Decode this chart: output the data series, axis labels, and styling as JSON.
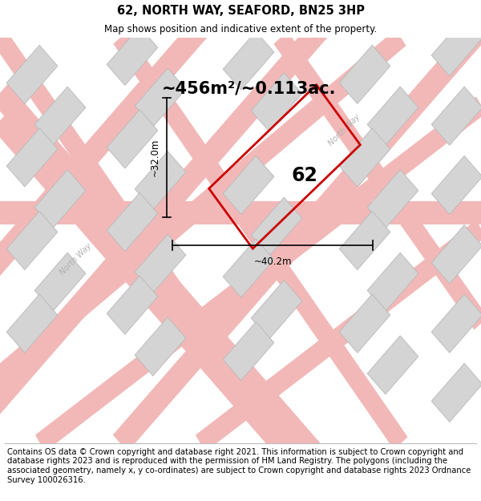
{
  "title": "62, NORTH WAY, SEAFORD, BN25 3HP",
  "subtitle": "Map shows position and indicative extent of the property.",
  "area_text": "~456m²/~0.113ac.",
  "dim_width": "~40.2m",
  "dim_height": "~32.0m",
  "plot_number": "62",
  "background_color": "#f0f0f0",
  "road_color": "#f2b8b8",
  "building_color": "#d4d4d4",
  "building_edge_color": "#b8b8b8",
  "plot_edge_color": "#cc0000",
  "road_label_color": "#aaaaaa",
  "footer_text": "Contains OS data © Crown copyright and database right 2021. This information is subject to Crown copyright and database rights 2023 and is reproduced with the permission of HM Land Registry. The polygons (including the associated geometry, namely x, y co-ordinates) are subject to Crown copyright and database rights 2023 Ordnance Survey 100026316.",
  "title_fontsize": 10.5,
  "subtitle_fontsize": 8.5,
  "footer_fontsize": 7.2,
  "map_bg": "#eeeeee"
}
